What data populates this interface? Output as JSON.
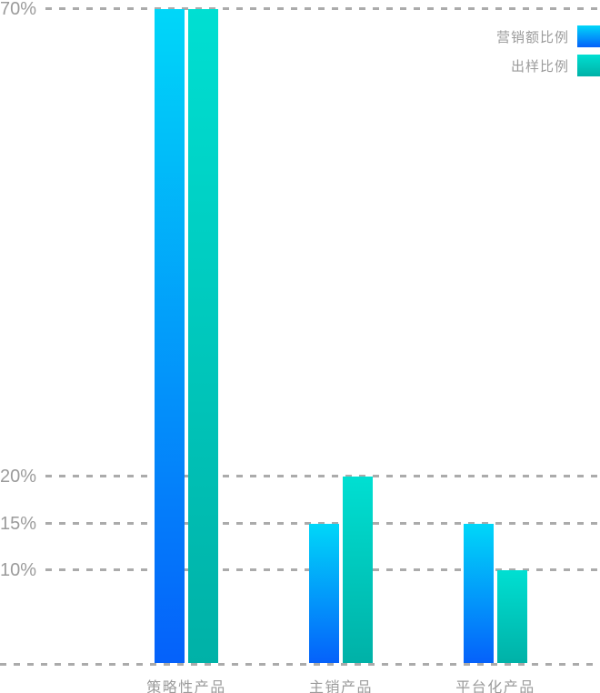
{
  "chart_data": {
    "type": "bar",
    "title": "",
    "categories": [
      "策略性产品",
      "主销产品",
      "平台化产品"
    ],
    "series": [
      {
        "name": "营销额比例",
        "values": [
          70,
          15,
          15
        ],
        "color_top": "#00D7F9",
        "color_bottom": "#0561FA"
      },
      {
        "name": "出样比例",
        "values": [
          70,
          20,
          10
        ],
        "color_top": "#00DFD2",
        "color_bottom": "#00B1A7"
      }
    ],
    "xlabel": "",
    "ylabel": "",
    "ylim": [
      0,
      70
    ],
    "y_gridlines": [
      70,
      20,
      15,
      10
    ],
    "y_tick_labels": [
      "70%",
      "20%",
      "15%",
      "10%"
    ],
    "grid": "dashed",
    "legend_position": "top-right"
  },
  "colors": {
    "text": "#9b9b9b",
    "gridline": "#ababab",
    "background": "#ffffff"
  }
}
